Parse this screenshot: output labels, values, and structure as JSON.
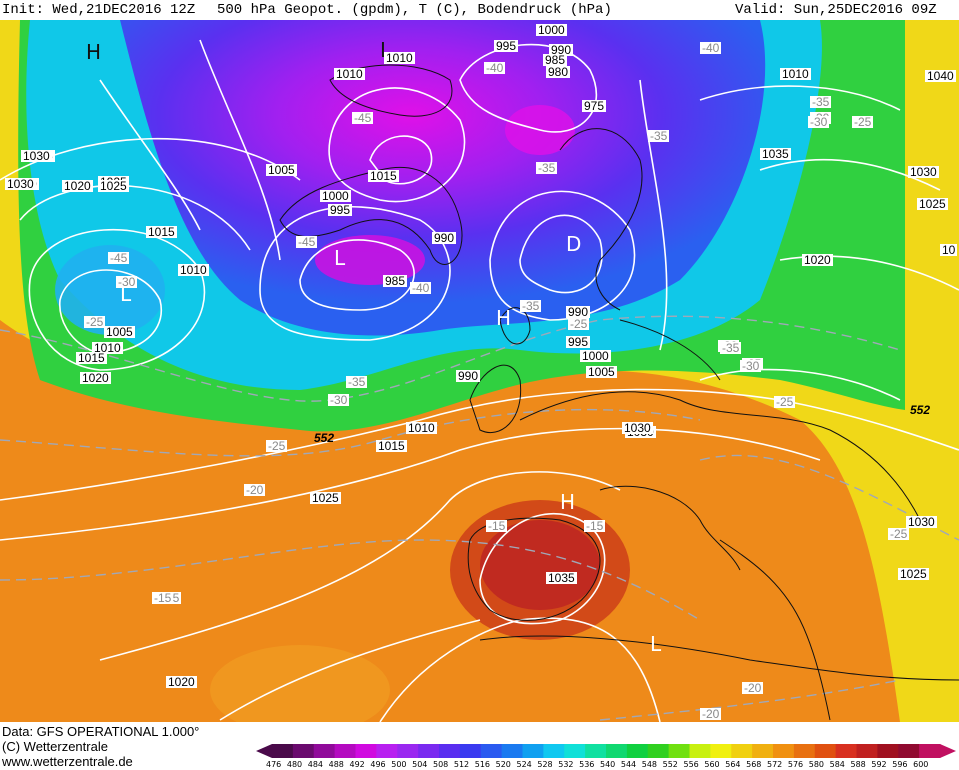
{
  "header": {
    "init": "Init: Wed,21DEC2016 12Z",
    "title": "500 hPa Geopot. (gpdm), T (C), Bodendruck (hPa)",
    "valid": "Valid: Sun,25DEC2016 09Z"
  },
  "footer": {
    "data": "Data: GFS OPERATIONAL 1.000°",
    "copyright": "(C) Wetterzentrale",
    "url": "www.wetterzentrale.de"
  },
  "colorbar": {
    "labels": [
      "476",
      "480",
      "484",
      "488",
      "492",
      "496",
      "500",
      "504",
      "508",
      "512",
      "516",
      "520",
      "524",
      "528",
      "532",
      "536",
      "540",
      "544",
      "548",
      "552",
      "556",
      "560",
      "564",
      "568",
      "572",
      "576",
      "580",
      "584",
      "588",
      "592",
      "596",
      "600"
    ],
    "colors": [
      "#4a0a4a",
      "#6a0a6e",
      "#900a9a",
      "#b40ac0",
      "#d00ae0",
      "#b820f0",
      "#9a28f0",
      "#7a2af0",
      "#5a2ef0",
      "#3a3af0",
      "#2a5af0",
      "#1a7af0",
      "#10a0f0",
      "#10c8f0",
      "#10e0d8",
      "#10e0a0",
      "#10d870",
      "#10d040",
      "#30d020",
      "#70e010",
      "#c8f010",
      "#f0f010",
      "#f0d010",
      "#f0b010",
      "#f09010",
      "#e87010",
      "#e05010",
      "#d83020",
      "#c02020",
      "#a01020",
      "#900a30",
      "#c01060"
    ]
  },
  "pressure_labels": [
    "1000",
    "995",
    "990",
    "985",
    "980",
    "975",
    "1010",
    "1010",
    "1005",
    "1015",
    "1000",
    "995",
    "990",
    "985",
    "990",
    "995",
    "1000",
    "1005",
    "1035",
    "1030",
    "1020",
    "1025",
    "1015",
    "1010",
    "1005",
    "1010",
    "1015",
    "1020",
    "990",
    "1010",
    "1015",
    "1020",
    "1025",
    "1030",
    "1030",
    "1035",
    "1030",
    "1030",
    "1020",
    "1035",
    "1040",
    "1010",
    "1030",
    "1025",
    "1020",
    "1025",
    "1020",
    "1025",
    "1030",
    "10"
  ],
  "temp_labels": [
    "-40",
    "-40",
    "-45",
    "-35",
    "-35",
    "-45",
    "-45",
    "-40",
    "-35",
    "-30",
    "-25",
    "-25",
    "-35",
    "-30",
    "-25",
    "-20",
    "-35",
    "-30",
    "-25",
    "-30",
    "-25",
    "-25",
    "-20",
    "-15",
    "-15",
    "-15",
    "-20",
    "-15",
    "-25",
    "-30",
    "-35",
    "-30"
  ],
  "height_labels": [
    "552",
    "552"
  ],
  "centers": [
    {
      "type": "H"
    },
    {
      "type": "L"
    },
    {
      "type": "L"
    },
    {
      "type": "L"
    },
    {
      "type": "D"
    },
    {
      "type": "H"
    },
    {
      "type": "H"
    },
    {
      "type": "L"
    }
  ]
}
